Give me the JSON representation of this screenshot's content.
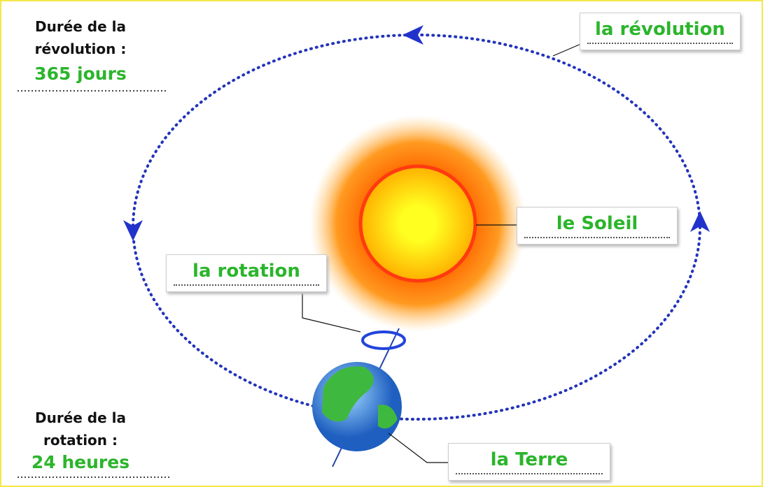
{
  "duration_revolution": {
    "label": "Durée de la révolution :",
    "value": "365 jours"
  },
  "duration_rotation": {
    "label": "Durée de la rotation :",
    "value": "24 heures"
  },
  "labels": {
    "revolution": "la révolution",
    "sun": "le Soleil",
    "rotation": "la rotation",
    "earth": "la Terre"
  }
}
